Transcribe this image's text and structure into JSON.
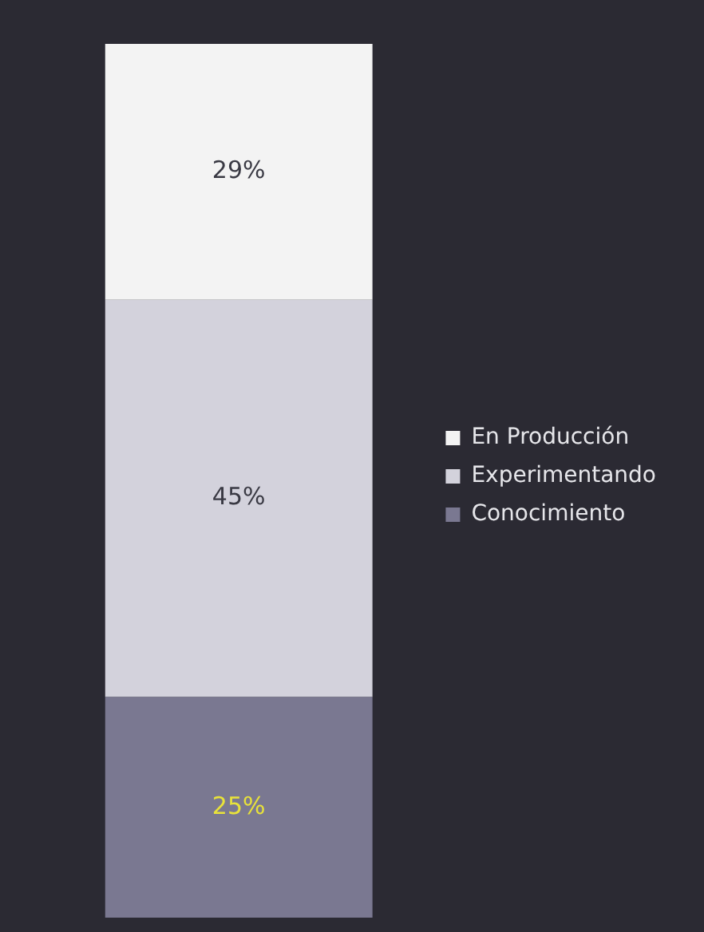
{
  "chart_data": {
    "type": "bar",
    "stacked": true,
    "categories": [
      null
    ],
    "series": [
      {
        "name": "Conocimiento",
        "color": "#7a7891",
        "values": [
          25
        ],
        "value_labels": [
          "25%"
        ]
      },
      {
        "name": "Experimentando",
        "color": "#d3d2dc",
        "values": [
          45
        ],
        "value_labels": [
          "45%"
        ]
      },
      {
        "name": "En Producción",
        "color": "#f3f3f3",
        "values": [
          29
        ],
        "value_labels": [
          "29%"
        ]
      }
    ],
    "legend": "right",
    "tick_labels": false,
    "grid": false
  }
}
